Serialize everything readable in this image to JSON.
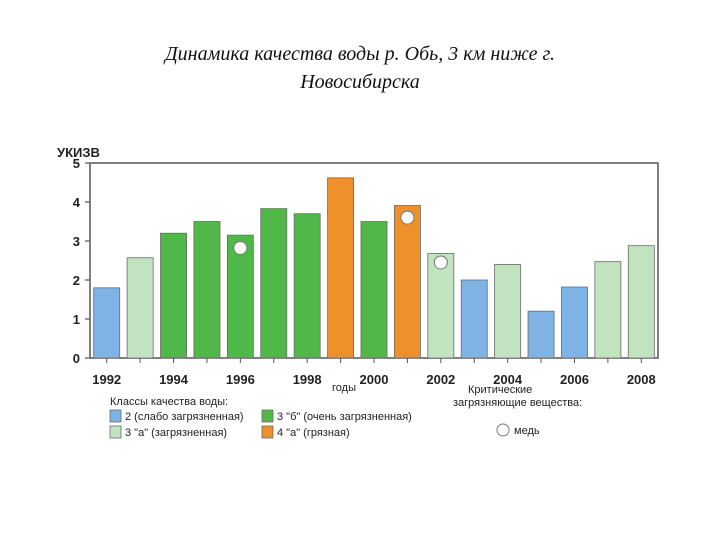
{
  "slide": {
    "title_line1": "Динамика качества воды р. Обь, 3 км ниже г.",
    "title_line2": "Новосибирска"
  },
  "chart_data": {
    "type": "bar",
    "ylabel": "УКИЗВ",
    "xlabel": "годы",
    "ylim": [
      0,
      5
    ],
    "yticks": [
      0,
      1,
      2,
      3,
      4,
      5
    ],
    "x_tick_labels": [
      "1992",
      "1994",
      "1996",
      "1998",
      "2000",
      "2002",
      "2004",
      "2006",
      "2008"
    ],
    "categories": [
      "1992",
      "1993",
      "1994",
      "1995",
      "1996",
      "1997",
      "1998",
      "1999",
      "2000",
      "2001",
      "2002",
      "2003",
      "2004",
      "2005",
      "2006",
      "2007",
      "2008"
    ],
    "values": [
      1.8,
      2.57,
      3.2,
      3.5,
      3.15,
      3.83,
      3.7,
      4.62,
      3.5,
      3.91,
      2.68,
      2.0,
      2.4,
      1.2,
      1.82,
      2.47,
      2.88
    ],
    "classes": [
      "2",
      "3a",
      "3b",
      "3b",
      "3b",
      "3b",
      "3b",
      "4a",
      "3b",
      "4a",
      "3a",
      "2",
      "3a",
      "2",
      "2",
      "3a",
      "3a"
    ],
    "copper_markers": [
      {
        "year": "1996",
        "value": 2.82
      },
      {
        "year": "2001",
        "value": 3.6
      },
      {
        "year": "2002",
        "value": 2.45
      }
    ],
    "grid": false
  },
  "legend": {
    "classes_title": "Классы качества воды:",
    "critical_title_line1": "Критические",
    "critical_title_line2": "загрязняющие вещества:",
    "items": [
      {
        "key": "2",
        "label": "2 (слабо загрязненная)"
      },
      {
        "key": "3b",
        "label": "3 \"б\" (очень загрязненная)"
      },
      {
        "key": "3a",
        "label": "3 \"а\" (загрязненная)"
      },
      {
        "key": "4a",
        "label": "4 \"а\" (грязная)"
      }
    ],
    "copper_label": "медь"
  },
  "colors": {
    "2": "#7fb2e5",
    "3a": "#c2e3c0",
    "3b": "#4fb848",
    "4a": "#f0902a",
    "frame": "#555555"
  }
}
